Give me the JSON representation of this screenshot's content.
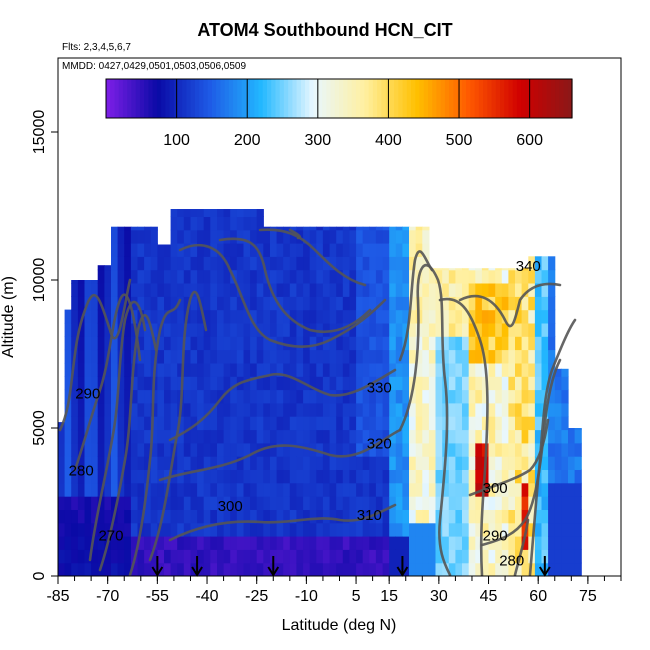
{
  "chart_data": {
    "type": "heatmap",
    "title": "ATOM4 Southbound HCN_CIT",
    "notes": {
      "flights": "Flts: 2,3,4,5,6,7",
      "dates": "MMDD: 0427,0429,0501,0503,0506,0509"
    },
    "xlabel": "Latitude (deg N)",
    "ylabel": "Altitude (m)",
    "xlim": [
      -85,
      85
    ],
    "ylim": [
      0,
      17500
    ],
    "x_ticks": [
      -85,
      -70,
      -55,
      -40,
      -25,
      -10,
      5,
      15,
      30,
      45,
      60,
      75
    ],
    "x_minor_step": 5,
    "y_ticks": [
      0,
      5000,
      10000,
      15000
    ],
    "colorbar": {
      "ticks": [
        100,
        200,
        300,
        400,
        500,
        600
      ],
      "range": [
        0,
        660
      ],
      "colors": [
        "#7f1fe8",
        "#0a0aa6",
        "#1e5ae6",
        "#22b8ff",
        "#e8f7ff",
        "#fff0a0",
        "#ffc000",
        "#ff5a00",
        "#d00000",
        "#8b1818"
      ]
    },
    "profile_markers_lat": [
      -55,
      -43,
      -20,
      19,
      62
    ],
    "contour_labels": [
      {
        "text": "340",
        "lat": 57,
        "alt": 10300
      },
      {
        "text": "330",
        "lat": 12,
        "alt": 6200
      },
      {
        "text": "320",
        "lat": 12,
        "alt": 4300
      },
      {
        "text": "310",
        "lat": 9,
        "alt": 1900
      },
      {
        "text": "300",
        "lat": 47,
        "alt": 2800
      },
      {
        "text": "290",
        "lat": -76,
        "alt": 6000
      },
      {
        "text": "290",
        "lat": 47,
        "alt": 1200
      },
      {
        "text": "280",
        "lat": -78,
        "alt": 3400
      },
      {
        "text": "280",
        "lat": 52,
        "alt": 350
      },
      {
        "text": "270",
        "lat": -69,
        "alt": 1200
      },
      {
        "text": "300",
        "lat": -33,
        "alt": 2200
      }
    ]
  }
}
